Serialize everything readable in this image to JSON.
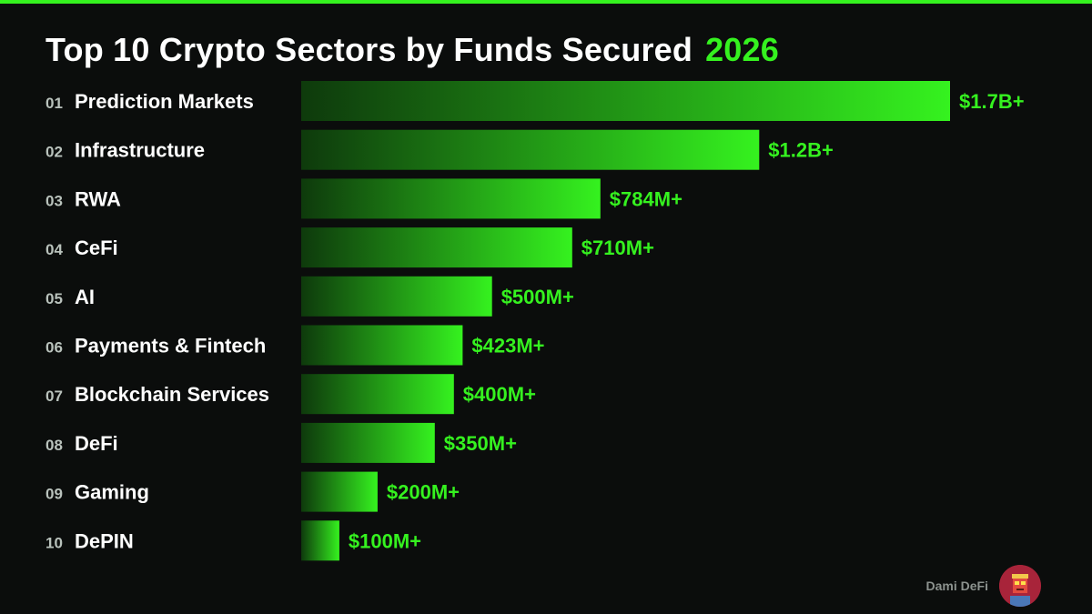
{
  "header": {
    "title": "Top 10 Crypto Sectors by Funds Secured",
    "year": "2026"
  },
  "chart_data": {
    "type": "bar",
    "orientation": "horizontal",
    "title": "Top 10 Crypto Sectors by Funds Secured 2026",
    "xlabel": "",
    "ylabel": "",
    "grid": false,
    "ranks": [
      "01",
      "02",
      "03",
      "04",
      "05",
      "06",
      "07",
      "08",
      "09",
      "10"
    ],
    "categories": [
      "Prediction Markets",
      "Infrastructure",
      "RWA",
      "CeFi",
      "AI",
      "Payments & Fintech",
      "Blockchain Services",
      "DeFi",
      "Gaming",
      "DePIN"
    ],
    "values": [
      1700000000,
      1200000000,
      784000000,
      710000000,
      500000000,
      423000000,
      400000000,
      350000000,
      200000000,
      100000000
    ],
    "value_labels": [
      "$1.7B+",
      "$1.2B+",
      "$784M+",
      "$710M+",
      "$500M+",
      "$423M+",
      "$400M+",
      "$350M+",
      "$200M+",
      "$100M+"
    ],
    "xlim": [
      0,
      1700000000
    ]
  },
  "footer": {
    "brand": "Dami DeFi"
  },
  "colors": {
    "background": "#0b0d0c",
    "accent": "#35f21f",
    "bar_start": "#0e3a0c",
    "bar_end": "#35f21f",
    "text": "#ffffff",
    "rank": "#b9c2bc",
    "avatar_bg": "#a8243a"
  },
  "icons": {
    "avatar": "robot-avatar-icon"
  }
}
